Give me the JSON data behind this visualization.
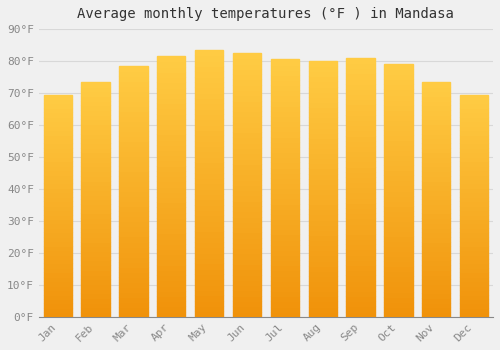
{
  "title": "Average monthly temperatures (°F ) in Mandasa",
  "months": [
    "Jan",
    "Feb",
    "Mar",
    "Apr",
    "May",
    "Jun",
    "Jul",
    "Aug",
    "Sep",
    "Oct",
    "Nov",
    "Dec"
  ],
  "values": [
    69.5,
    73.5,
    78.5,
    81.5,
    83.5,
    82.5,
    80.5,
    80.0,
    81.0,
    79.0,
    73.5,
    69.5
  ],
  "bar_color_top": "#FDB827",
  "bar_color_bottom": "#F5A800",
  "background_color": "#f0f0f0",
  "ylim": [
    0,
    90
  ],
  "yticks": [
    0,
    10,
    20,
    30,
    40,
    50,
    60,
    70,
    80,
    90
  ],
  "ytick_labels": [
    "0°F",
    "10°F",
    "20°F",
    "30°F",
    "40°F",
    "50°F",
    "60°F",
    "70°F",
    "80°F",
    "90°F"
  ],
  "title_fontsize": 10,
  "tick_fontsize": 8,
  "grid_color": "#d8d8d8",
  "bar_width": 0.75
}
